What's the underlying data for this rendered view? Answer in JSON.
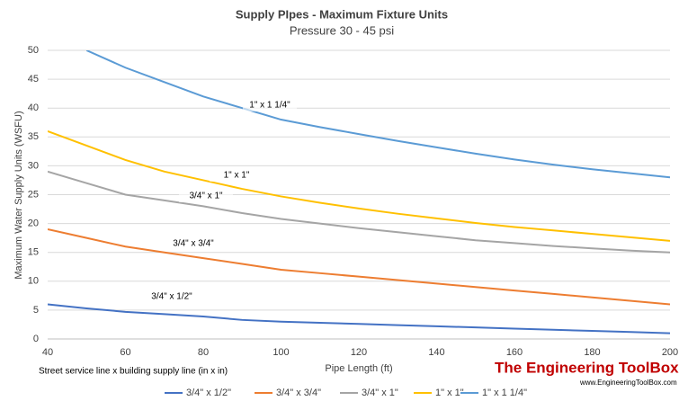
{
  "chart_data": {
    "type": "line",
    "title": "Supply PIpes - Maximum  Fixture  Units",
    "subtitle": "Pressure  30 - 45 psi",
    "x_label": "Pipe Length (ft)",
    "y_label": "Maximum Water Supply Units (WSFU)",
    "note": "Street service line x building supply line (in x in)",
    "annotations": [
      "1\" x 1 1/4\"",
      "1\" x 1\"",
      "3/4\" x 1\"",
      "3/4\" x 3/4\"",
      "3/4\" x 1/2\""
    ],
    "logo": "The Engineering ToolBox",
    "logo_url": "www.EngineeringToolBox.com",
    "x": [
      40,
      50,
      60,
      70,
      80,
      90,
      100,
      110,
      120,
      130,
      140,
      150,
      160,
      170,
      180,
      190,
      200
    ],
    "series": [
      {
        "name": "3/4\" x 1/2\"",
        "color": "#4472c4",
        "values": [
          6,
          5.3,
          4.7,
          4.3,
          3.9,
          3.3,
          3,
          2.8,
          2.6,
          2.4,
          2.2,
          2,
          1.8,
          1.6,
          1.4,
          1.2,
          1
        ]
      },
      {
        "name": "3/4\" x 3/4\"",
        "color": "#ed7d31",
        "values": [
          19,
          17.5,
          16,
          15,
          14,
          13,
          12,
          11.4,
          10.8,
          10.2,
          9.6,
          9,
          8.4,
          7.8,
          7.2,
          6.6,
          6
        ]
      },
      {
        "name": "3/4\" x 1\"",
        "color": "#a5a5a5",
        "values": [
          29,
          27,
          25,
          24,
          23,
          21.8,
          20.8,
          20,
          19.2,
          18.5,
          17.8,
          17.1,
          16.6,
          16.1,
          15.7,
          15.3,
          15
        ]
      },
      {
        "name": "1\" x 1\"",
        "color": "#ffc000",
        "values": [
          36,
          33.5,
          31,
          29,
          27.5,
          26,
          24.7,
          23.6,
          22.6,
          21.7,
          20.9,
          20.1,
          19.4,
          18.8,
          18.2,
          17.6,
          17
        ]
      },
      {
        "name": "1\" x 1 1/4\"",
        "color": "#5b9bd5",
        "values": [
          null,
          50,
          47,
          44.5,
          42,
          40,
          38,
          36.7,
          35.5,
          34.3,
          33.2,
          32.1,
          31.1,
          30.2,
          29.4,
          28.7,
          28
        ]
      }
    ],
    "xlim": [
      40,
      200
    ],
    "xticks": [
      40,
      60,
      80,
      100,
      120,
      140,
      160,
      180,
      200
    ],
    "ylim": [
      0,
      50
    ],
    "yticks": [
      0,
      5,
      10,
      15,
      20,
      25,
      30,
      35,
      40,
      45,
      50
    ],
    "grid": true,
    "legend": "bottom"
  }
}
